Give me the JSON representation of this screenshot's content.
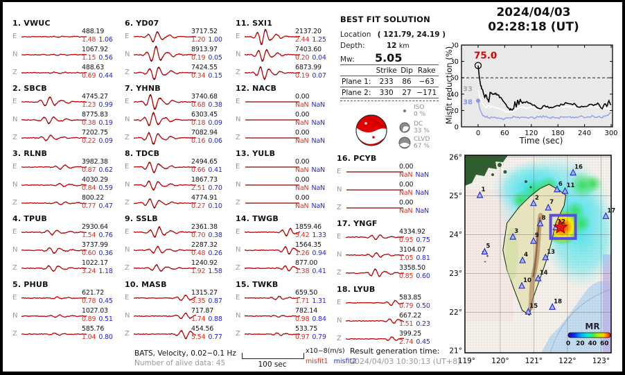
{
  "header": {
    "date": "2024/04/03",
    "time": "02:28:18  (UT)"
  },
  "best_fit": {
    "title": "BEST FIT SOLUTION",
    "location_label": "Location",
    "location_value": "( 121.79,  24.19 )",
    "depth_label": "Depth:",
    "depth_value": "12",
    "depth_unit": "km",
    "mw_label": "Mw:",
    "mw_value": "5.05",
    "table": {
      "headers": [
        "Strike",
        "Dip",
        "Rake"
      ],
      "rows": [
        {
          "label": "Plane 1:",
          "strike": "233",
          "dip": "86",
          "rake": "−63"
        },
        {
          "label": "Plane 2:",
          "strike": "330",
          "dip": "27",
          "rake": "−171"
        }
      ]
    },
    "decomposition": [
      {
        "name": "ISO",
        "pct": "0 %"
      },
      {
        "name": "DC",
        "pct": "33 %"
      },
      {
        "name": "CLVD",
        "pct": "67 %"
      }
    ]
  },
  "stations": [
    {
      "num": "1.",
      "name": "VWUC",
      "trace": {
        "amp": 0.12,
        "pos": 0.55
      },
      "map": [
        0.102,
        0.202
      ],
      "components": [
        {
          "comp": "E",
          "amp": "488.19",
          "m1": "1.48",
          "m2": "1.06"
        },
        {
          "comp": "N",
          "amp": "1067.92",
          "m1": "1.15",
          "m2": "0.56"
        },
        {
          "comp": "Z",
          "amp": "488.63",
          "m1": "0.69",
          "m2": "0.44"
        }
      ]
    },
    {
      "num": "2.",
      "name": "SBCB",
      "trace": {
        "amp": 0.5,
        "pos": 0.42
      },
      "map": [
        0.469,
        0.243
      ],
      "components": [
        {
          "comp": "E",
          "amp": "4745.27",
          "m1": "1.23",
          "m2": "0.99"
        },
        {
          "comp": "N",
          "amp": "8775.83",
          "m1": "0.38",
          "m2": "0.19"
        },
        {
          "comp": "Z",
          "amp": "7202.75",
          "m1": "0.22",
          "m2": "0.09"
        }
      ]
    },
    {
      "num": "3.",
      "name": "RLNB",
      "trace": {
        "amp": 0.22,
        "pos": 0.62
      },
      "map": [
        0.328,
        0.413
      ],
      "components": [
        {
          "comp": "E",
          "amp": "3982.38",
          "m1": "0.87",
          "m2": "0.62"
        },
        {
          "comp": "N",
          "amp": "4030.29",
          "m1": "0.84",
          "m2": "0.59"
        },
        {
          "comp": "Z",
          "amp": "800.22",
          "m1": "0.77",
          "m2": "0.47"
        }
      ]
    },
    {
      "num": "4.",
      "name": "TPUB",
      "trace": {
        "amp": 0.5,
        "pos": 0.48
      },
      "map": [
        0.394,
        0.532
      ],
      "components": [
        {
          "comp": "E",
          "amp": "2930.64",
          "m1": "1.54",
          "m2": "0.76"
        },
        {
          "comp": "N",
          "amp": "3737.99",
          "m1": "0.60",
          "m2": "0.36"
        },
        {
          "comp": "Z",
          "amp": "1022.17",
          "m1": "3.24",
          "m2": "1.18"
        }
      ]
    },
    {
      "num": "5.",
      "name": "PHUB",
      "trace": {
        "amp": 0.14,
        "pos": 0.55
      },
      "map": [
        0.135,
        0.488
      ],
      "components": [
        {
          "comp": "E",
          "amp": "621.72",
          "m1": "0.78",
          "m2": "0.45"
        },
        {
          "comp": "N",
          "amp": "1027.03",
          "m1": "0.89",
          "m2": "0.51"
        },
        {
          "comp": "Z",
          "amp": "585.76",
          "m1": "1.04",
          "m2": "0.80"
        }
      ]
    },
    {
      "num": "6.",
      "name": "YD07",
      "trace": {
        "amp": 1.0,
        "pos": 0.34
      },
      "map": [
        0.63,
        0.173
      ],
      "components": [
        {
          "comp": "E",
          "amp": "3717.52",
          "m1": "1.20",
          "m2": "1.00"
        },
        {
          "comp": "N",
          "amp": "8913.97",
          "m1": "0.19",
          "m2": "0.05"
        },
        {
          "comp": "Z",
          "amp": "7424.55",
          "m1": "0.34",
          "m2": "0.15"
        }
      ]
    },
    {
      "num": "7.",
      "name": "YHNB",
      "trace": {
        "amp": 0.95,
        "pos": 0.3
      },
      "map": [
        0.57,
        0.265
      ],
      "components": [
        {
          "comp": "E",
          "amp": "3740.68",
          "m1": "0.68",
          "m2": "0.38"
        },
        {
          "comp": "N",
          "amp": "6303.45",
          "m1": "0.18",
          "m2": "0.09"
        },
        {
          "comp": "Z",
          "amp": "7082.94",
          "m1": "0.16",
          "m2": "0.06"
        }
      ]
    },
    {
      "num": "8.",
      "name": "TDCB",
      "trace": {
        "amp": 0.55,
        "pos": 0.3
      },
      "map": [
        0.515,
        0.345
      ],
      "components": [
        {
          "comp": "E",
          "amp": "2494.65",
          "m1": "0.66",
          "m2": "0.41"
        },
        {
          "comp": "N",
          "amp": "1867.73",
          "m1": "2.51",
          "m2": "0.70"
        },
        {
          "comp": "Z",
          "amp": "4774.91",
          "m1": "0.27",
          "m2": "0.10"
        }
      ]
    },
    {
      "num": "9.",
      "name": "SSLB",
      "trace": {
        "amp": 0.5,
        "pos": 0.38
      },
      "map": [
        0.469,
        0.434
      ],
      "components": [
        {
          "comp": "E",
          "amp": "2361.38",
          "m1": "0.70",
          "m2": "0.38"
        },
        {
          "comp": "N",
          "amp": "2287.32",
          "m1": "0.48",
          "m2": "0.26"
        },
        {
          "comp": "Z",
          "amp": "1240.92",
          "m1": "1.92",
          "m2": "1.58"
        }
      ]
    },
    {
      "num": "10.",
      "name": "MASB",
      "trace": {
        "amp": 0.4,
        "pos": 0.82
      },
      "map": [
        0.389,
        0.661
      ],
      "components": [
        {
          "comp": "E",
          "amp": "1315.27",
          "m1": "3.35",
          "m2": "0.87"
        },
        {
          "comp": "N",
          "amp": "717.87",
          "m1": "1.74",
          "m2": "0.88"
        },
        {
          "comp": "Z",
          "amp": "454.56",
          "m1": "5.54",
          "m2": "0.77"
        }
      ]
    },
    {
      "num": "11.",
      "name": "SXI1",
      "trace": {
        "amp": 1.0,
        "pos": 0.33
      },
      "map": [
        0.685,
        0.181
      ],
      "components": [
        {
          "comp": "E",
          "amp": "2137.20",
          "m1": "2.44",
          "m2": "1.25"
        },
        {
          "comp": "N",
          "amp": "7403.60",
          "m1": "0.20",
          "m2": "0.04"
        },
        {
          "comp": "Z",
          "amp": "6873.99",
          "m1": "0.19",
          "m2": "0.07"
        }
      ]
    },
    {
      "num": "12.",
      "name": "NACB",
      "trace": {
        "amp": 0,
        "pos": 0.5
      },
      "map": [
        0.622,
        0.365
      ],
      "components": [
        {
          "comp": "E",
          "amp": "0.00",
          "m1": "NaN",
          "m2": "NaN"
        },
        {
          "comp": "N",
          "amp": "0.00",
          "m1": "NaN",
          "m2": "NaN"
        },
        {
          "comp": "Z",
          "amp": "0.00",
          "m1": "NaN",
          "m2": "NaN"
        }
      ]
    },
    {
      "num": "13.",
      "name": "YULB",
      "trace": {
        "amp": 0,
        "pos": 0.5
      },
      "map": [
        0.551,
        0.517
      ],
      "components": [
        {
          "comp": "E",
          "amp": "0.00",
          "m1": "NaN",
          "m2": "NaN"
        },
        {
          "comp": "N",
          "amp": "0.00",
          "m1": "NaN",
          "m2": "NaN"
        },
        {
          "comp": "Z",
          "amp": "0.00",
          "m1": "NaN",
          "m2": "NaN"
        }
      ]
    },
    {
      "num": "14.",
      "name": "TWGB",
      "trace": {
        "amp": 0.5,
        "pos": 0.78
      },
      "map": [
        0.501,
        0.623
      ],
      "components": [
        {
          "comp": "E",
          "amp": "1859.46",
          "m1": "3.42",
          "m2": "1.33"
        },
        {
          "comp": "N",
          "amp": "1564.35",
          "m1": "1.26",
          "m2": "0.94"
        },
        {
          "comp": "Z",
          "amp": "877.00",
          "m1": "1.38",
          "m2": "0.41"
        }
      ]
    },
    {
      "num": "15.",
      "name": "TWKB",
      "trace": {
        "amp": 0.18,
        "pos": 0.6
      },
      "map": [
        0.433,
        0.792
      ],
      "components": [
        {
          "comp": "E",
          "amp": "659.50",
          "m1": "1.71",
          "m2": "1.31"
        },
        {
          "comp": "N",
          "amp": "782.14",
          "m1": "0.98",
          "m2": "0.84"
        },
        {
          "comp": "Z",
          "amp": "533.75",
          "m1": "0.97",
          "m2": "0.79"
        }
      ]
    },
    {
      "num": "16.",
      "name": "PCYB",
      "trace": {
        "amp": 0,
        "pos": 0.5
      },
      "map": [
        0.74,
        0.088
      ],
      "components": [
        {
          "comp": "E",
          "amp": "0.00",
          "m1": "NaN",
          "m2": "NaN"
        },
        {
          "comp": "N",
          "amp": "0.00",
          "m1": "NaN",
          "m2": "NaN"
        },
        {
          "comp": "Z",
          "amp": "0.00",
          "m1": "NaN",
          "m2": "NaN"
        }
      ]
    },
    {
      "num": "17.",
      "name": "YNGF",
      "trace": {
        "amp": 0.4,
        "pos": 0.52
      },
      "map": [
        0.964,
        0.308
      ],
      "components": [
        {
          "comp": "E",
          "amp": "4334.92",
          "m1": "0.95",
          "m2": "0.75"
        },
        {
          "comp": "N",
          "amp": "3104.07",
          "m1": "1.05",
          "m2": "0.81"
        },
        {
          "comp": "Z",
          "amp": "3358.50",
          "m1": "0.85",
          "m2": "0.60"
        }
      ]
    },
    {
      "num": "18.",
      "name": "LYUB",
      "trace": {
        "amp": 0.25,
        "pos": 0.8
      },
      "map": [
        0.598,
        0.768
      ],
      "components": [
        {
          "comp": "E",
          "amp": "583.85",
          "m1": "0.79",
          "m2": "0.50"
        },
        {
          "comp": "N",
          "amp": "667.22",
          "m1": "1.51",
          "m2": "0.23"
        },
        {
          "comp": "Z",
          "amp": "399.25",
          "m1": "2.74",
          "m2": "0.45"
        }
      ]
    }
  ],
  "footer": {
    "dataset": "BATS, Velocity, 0.02−0.1 Hz",
    "alive": "Number of alive data: 45",
    "scale_label": "100 sec",
    "unit_label": "x10−8(m/s)",
    "misfit1_label": "misfit1",
    "misfit2_label": "misfit2",
    "result_label": "Result generation time:",
    "result_time": "2024/04/03 10:30:13 (UT+8)"
  },
  "chart_data": [
    {
      "type": "line",
      "title": "2024/04/03 02:28:18 (UT)",
      "xlabel": "Time (sec)",
      "ylabel": "Misfit reduction (%)",
      "xlim": [
        0,
        300
      ],
      "ylim": [
        0,
        100
      ],
      "xticks": [
        0,
        60,
        120,
        180,
        240,
        300
      ],
      "yticks": [
        0,
        20,
        40,
        60,
        80,
        100
      ],
      "threshold_dashed": 60,
      "grid": false,
      "legend_position": "none",
      "annotations": [
        {
          "text": "75.0",
          "color": "#dd0000",
          "at": [
            0,
            75
          ]
        },
        {
          "text": "33",
          "color": "#aaaaaa",
          "at": [
            0,
            46
          ]
        },
        {
          "text": "38",
          "color": "#8a97ea",
          "at": [
            0,
            30
          ]
        }
      ],
      "series": [
        {
          "name": "misfit reduction (current)",
          "color": "#000000",
          "x": [
            0,
            3,
            6,
            9,
            12,
            15,
            18,
            21,
            24,
            27,
            30,
            35,
            40,
            45,
            50,
            55,
            60,
            65,
            70,
            75,
            80,
            83,
            86,
            89,
            92,
            95,
            100,
            110,
            120,
            130,
            140,
            150,
            160,
            170,
            180,
            190,
            200,
            210,
            220,
            230,
            240,
            250,
            260,
            270,
            280,
            285,
            290,
            295,
            300
          ],
          "y": [
            75,
            60,
            50,
            46,
            41,
            36,
            39,
            34,
            30,
            42,
            41,
            40,
            41,
            39,
            36,
            33,
            29,
            25,
            22,
            21,
            22,
            31,
            24,
            33,
            27,
            34,
            29,
            31,
            28,
            25,
            22,
            26,
            23,
            24,
            26,
            27,
            29,
            28,
            27,
            24,
            25,
            27,
            26,
            29,
            22,
            28,
            25,
            32,
            27
          ]
        },
        {
          "name": "reference white",
          "color": "#ffffff",
          "x": [
            0,
            5,
            10,
            15,
            20,
            25,
            30,
            40,
            50,
            60,
            70,
            80,
            90,
            100,
            110,
            120,
            130,
            140,
            150,
            160,
            170,
            180,
            190,
            200,
            210,
            220,
            230,
            240,
            250,
            260,
            270,
            280,
            290,
            300
          ],
          "y": [
            45,
            34,
            28,
            25,
            24,
            26,
            25,
            23,
            22,
            20,
            18,
            19,
            22,
            24,
            23,
            24,
            22,
            21,
            23,
            22,
            23,
            24,
            24,
            25,
            24,
            23,
            24,
            25,
            24,
            25,
            24,
            22,
            23,
            20
          ]
        },
        {
          "name": "reference blue",
          "color": "#97a3ec",
          "x": [
            0,
            5,
            10,
            15,
            20,
            25,
            30,
            40,
            50,
            60,
            70,
            80,
            90,
            100,
            110,
            120,
            130,
            140,
            150,
            160,
            170,
            180,
            190,
            200,
            210,
            220,
            230,
            240,
            250,
            260,
            270,
            280,
            290,
            300
          ],
          "y": [
            32,
            20,
            14,
            12,
            13,
            11,
            12,
            11,
            10,
            10,
            11,
            13,
            12,
            12,
            11,
            12,
            11,
            13,
            12,
            11,
            12,
            11,
            12,
            12,
            11,
            12,
            13,
            11,
            12,
            13,
            12,
            11,
            14,
            17
          ]
        }
      ]
    },
    {
      "type": "map",
      "region": "Taiwan",
      "lon_ticks": [
        "119°",
        "120°",
        "121°",
        "122°",
        "123°"
      ],
      "lat_ticks": [
        "26°",
        "25°",
        "24°",
        "23°",
        "22°",
        "21°"
      ],
      "epicenter": {
        "lon": 121.79,
        "lat": 24.19
      },
      "colorbar": {
        "label": "MR",
        "ticks": [
          "0",
          "20",
          "40",
          "60"
        ]
      }
    }
  ],
  "colors": {
    "misfit1": "#e82818",
    "misfit2": "#2222dd",
    "trace_observed": "#000000",
    "trace_synthetic": "#cc0000",
    "trace_dead": "#9c2b20",
    "beachball_red": "#e00000",
    "epicenter_red": "#ee1111",
    "box_violet": "#5b49e8",
    "plot_bg": "#e9e9e9"
  }
}
